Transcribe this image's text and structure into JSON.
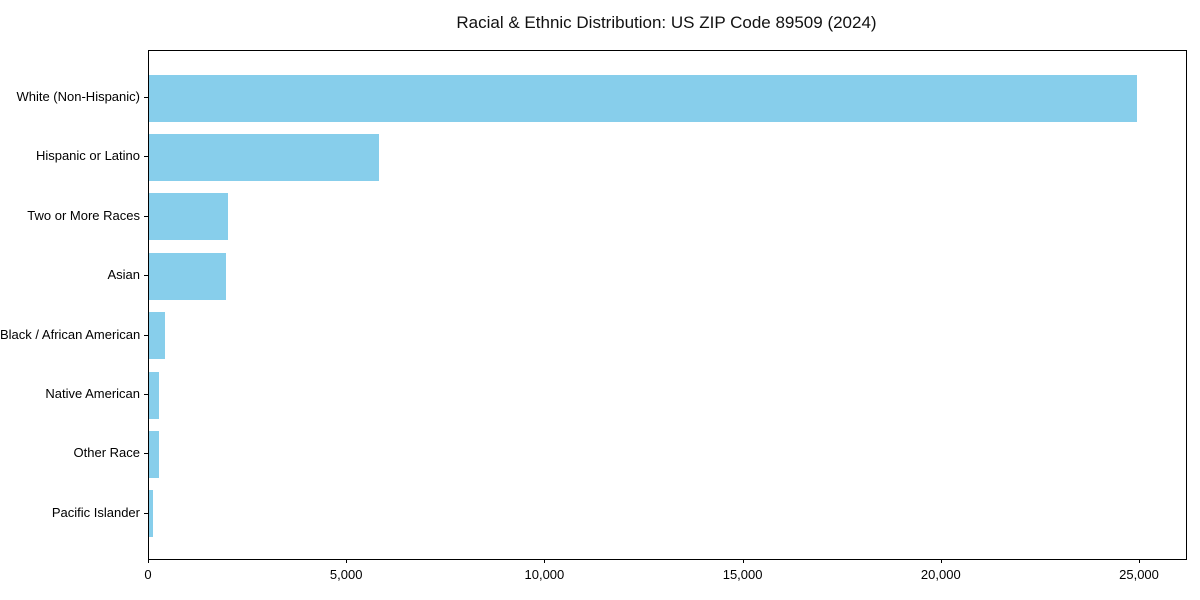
{
  "chart_data": {
    "type": "bar",
    "orientation": "horizontal",
    "title": "Racial & Ethnic Distribution: US ZIP Code 89509 (2024)",
    "categories": [
      "White (Non-Hispanic)",
      "Hispanic or Latino",
      "Two or More Races",
      "Asian",
      "Black / African American",
      "Native American",
      "Other Race",
      "Pacific Islander"
    ],
    "values": [
      24920,
      5800,
      1990,
      1940,
      410,
      240,
      250,
      110
    ],
    "xlabel": "",
    "ylabel": "",
    "xlim": [
      0,
      26160
    ],
    "x_ticks": [
      0,
      5000,
      10000,
      15000,
      20000,
      25000
    ],
    "x_tick_labels": [
      "0",
      "5,000",
      "10,000",
      "15,000",
      "20,000",
      "25,000"
    ],
    "bar_color": "#87CEEB",
    "axis_color": "#000000",
    "grid": false,
    "legend_position": "none"
  }
}
